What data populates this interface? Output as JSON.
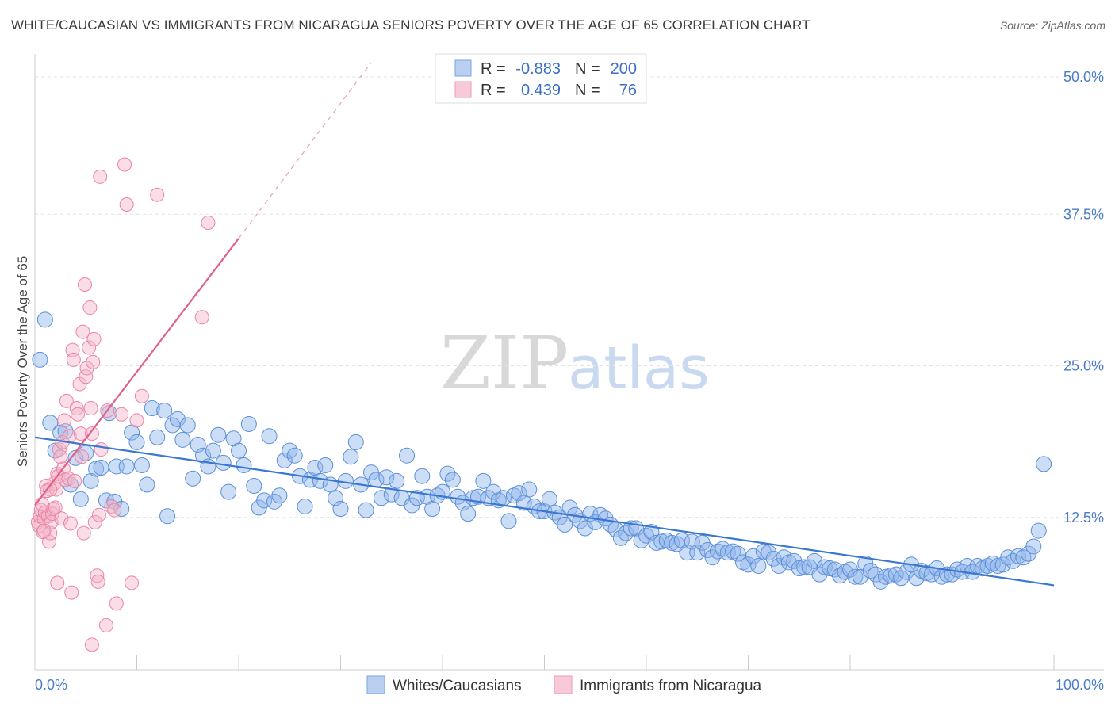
{
  "title": "WHITE/CAUCASIAN VS IMMIGRANTS FROM NICARAGUA SENIORS POVERTY OVER THE AGE OF 65 CORRELATION CHART",
  "source": "Source: ZipAtlas.com",
  "watermark": {
    "zip": "ZIP",
    "atlas": "atlas"
  },
  "chart_data": {
    "type": "scatter",
    "title": "WHITE/CAUCASIAN VS IMMIGRANTS FROM NICARAGUA SENIORS POVERTY OVER THE AGE OF 65 CORRELATION CHART",
    "xlabel": "",
    "ylabel": "Seniors Poverty Over the Age of 65",
    "xlim": [
      0,
      100
    ],
    "ylim": [
      0,
      50
    ],
    "x_tick_labels": {
      "min": "0.0%",
      "max": "100.0%"
    },
    "y_ticks": [
      12.5,
      25.0,
      37.5,
      50.0
    ],
    "y_tick_labels": [
      "12.5%",
      "25.0%",
      "37.5%",
      "50.0%"
    ],
    "legend": {
      "rows": [
        {
          "r_label": "R =",
          "r_value": "-0.883",
          "n_label": "N =",
          "n_value": "200"
        },
        {
          "r_label": "R =",
          "r_value": "0.439",
          "n_label": "N =",
          "n_value": "76"
        }
      ]
    },
    "series": [
      {
        "name": "Whites/Caucasians",
        "color": "#8fb4ea",
        "stroke": "#5b8fd8",
        "trend": {
          "x0": 0,
          "y0": 19.1,
          "x1": 100,
          "y1": 6.9,
          "color": "#3a78d0"
        },
        "points": [
          [
            0.5,
            25.5
          ],
          [
            1,
            28.8
          ],
          [
            1.5,
            20.3
          ],
          [
            2,
            18
          ],
          [
            2.5,
            19.5
          ],
          [
            3,
            19.6
          ],
          [
            3.5,
            15.2
          ],
          [
            4,
            17.4
          ],
          [
            4.5,
            14
          ],
          [
            5,
            17.8
          ],
          [
            5.5,
            15.5
          ],
          [
            6,
            16.5
          ],
          [
            6.5,
            16.6
          ],
          [
            7,
            13.9
          ],
          [
            7.3,
            21.1
          ],
          [
            7.8,
            13.8
          ],
          [
            8,
            16.7
          ],
          [
            8.5,
            13.2
          ],
          [
            9,
            16.7
          ],
          [
            9.5,
            19.5
          ],
          [
            10,
            18.7
          ],
          [
            10.5,
            16.8
          ],
          [
            11,
            15.2
          ],
          [
            11.5,
            21.5
          ],
          [
            12,
            19.1
          ],
          [
            12.7,
            21.3
          ],
          [
            13,
            12.6
          ],
          [
            13.5,
            20.1
          ],
          [
            14,
            20.6
          ],
          [
            14.5,
            18.9
          ],
          [
            15,
            20.1
          ],
          [
            15.5,
            15.7
          ],
          [
            16,
            18.5
          ],
          [
            16.5,
            17.6
          ],
          [
            17,
            16.7
          ],
          [
            17.5,
            18.0
          ],
          [
            18,
            19.3
          ],
          [
            18.5,
            17
          ],
          [
            19,
            14.6
          ],
          [
            19.5,
            19
          ],
          [
            20,
            18
          ],
          [
            20.5,
            16.8
          ],
          [
            21,
            20.2
          ],
          [
            21.5,
            15.1
          ],
          [
            22,
            13.3
          ],
          [
            22.5,
            13.9
          ],
          [
            23,
            19.2
          ],
          [
            23.5,
            13.8
          ],
          [
            24,
            14.3
          ],
          [
            24.5,
            17.2
          ],
          [
            25,
            18
          ],
          [
            25.5,
            17.6
          ],
          [
            26,
            15.9
          ],
          [
            26.5,
            13.4
          ],
          [
            27,
            15.6
          ],
          [
            27.5,
            16.6
          ],
          [
            28,
            15.5
          ],
          [
            28.5,
            16.8
          ],
          [
            29,
            15.2
          ],
          [
            29.5,
            14.1
          ],
          [
            30,
            13.2
          ],
          [
            30.5,
            15.5
          ],
          [
            31,
            17.5
          ],
          [
            31.5,
            18.7
          ],
          [
            32,
            15.2
          ],
          [
            32.5,
            13.1
          ],
          [
            33,
            16.2
          ],
          [
            33.5,
            15.6
          ],
          [
            34,
            14.1
          ],
          [
            34.5,
            15.8
          ],
          [
            35,
            14.4
          ],
          [
            35.5,
            15.5
          ],
          [
            36,
            14.1
          ],
          [
            36.5,
            17.6
          ],
          [
            37,
            13.5
          ],
          [
            37.5,
            14.1
          ],
          [
            38,
            15.9
          ],
          [
            38.5,
            14.2
          ],
          [
            39,
            13.2
          ],
          [
            39.5,
            14.3
          ],
          [
            40,
            14.6
          ],
          [
            40.5,
            16.1
          ],
          [
            41,
            15.6
          ],
          [
            41.5,
            14.2
          ],
          [
            42,
            13.7
          ],
          [
            42.5,
            12.8
          ],
          [
            43,
            14.1
          ],
          [
            43.5,
            14.2
          ],
          [
            44,
            15.5
          ],
          [
            44.5,
            14.1
          ],
          [
            45,
            14.6
          ],
          [
            45.5,
            13.9
          ],
          [
            46,
            14.1
          ],
          [
            46.5,
            12.2
          ],
          [
            47,
            14.3
          ],
          [
            47.5,
            14.5
          ],
          [
            48,
            13.7
          ],
          [
            48.5,
            14.8
          ],
          [
            49,
            13.4
          ],
          [
            49.5,
            13
          ],
          [
            50,
            13
          ],
          [
            50.5,
            14
          ],
          [
            51,
            12.9
          ],
          [
            51.5,
            12.5
          ],
          [
            52,
            11.9
          ],
          [
            52.5,
            13.3
          ],
          [
            53,
            12.7
          ],
          [
            53.5,
            12.2
          ],
          [
            54,
            11.6
          ],
          [
            54.5,
            12.8
          ],
          [
            55,
            12.1
          ],
          [
            55.5,
            12.7
          ],
          [
            56,
            12.4
          ],
          [
            56.5,
            11.9
          ],
          [
            57,
            11.5
          ],
          [
            57.5,
            10.8
          ],
          [
            58,
            11.2
          ],
          [
            58.5,
            11.6
          ],
          [
            59,
            11.6
          ],
          [
            59.5,
            10.6
          ],
          [
            60,
            11
          ],
          [
            60.5,
            11.3
          ],
          [
            61,
            10.4
          ],
          [
            61.5,
            10.5
          ],
          [
            62,
            10.6
          ],
          [
            62.5,
            10.4
          ],
          [
            63,
            10.3
          ],
          [
            63.5,
            10.6
          ],
          [
            64,
            9.6
          ],
          [
            64.5,
            10.5
          ],
          [
            65,
            9.6
          ],
          [
            65.5,
            10.4
          ],
          [
            66,
            9.8
          ],
          [
            66.5,
            9.2
          ],
          [
            67,
            9.7
          ],
          [
            67.5,
            9.9
          ],
          [
            68,
            9.6
          ],
          [
            68.5,
            9.7
          ],
          [
            69,
            9.5
          ],
          [
            69.5,
            8.8
          ],
          [
            70,
            8.6
          ],
          [
            70.5,
            9.3
          ],
          [
            71,
            8.5
          ],
          [
            71.5,
            9.7
          ],
          [
            72,
            9.6
          ],
          [
            72.5,
            9.1
          ],
          [
            73,
            8.5
          ],
          [
            73.5,
            9.2
          ],
          [
            74,
            8.8
          ],
          [
            74.5,
            8.9
          ],
          [
            75,
            8.3
          ],
          [
            75.5,
            8.4
          ],
          [
            76,
            8.4
          ],
          [
            76.5,
            8.9
          ],
          [
            77,
            7.8
          ],
          [
            77.5,
            8.4
          ],
          [
            78,
            8.3
          ],
          [
            78.5,
            8.2
          ],
          [
            79,
            7.7
          ],
          [
            79.5,
            8.0
          ],
          [
            80,
            8.2
          ],
          [
            80.5,
            7.6
          ],
          [
            81,
            7.6
          ],
          [
            81.5,
            8.7
          ],
          [
            82,
            8.1
          ],
          [
            82.5,
            7.8
          ],
          [
            83,
            7.2
          ],
          [
            83.5,
            7.6
          ],
          [
            84,
            7.7
          ],
          [
            84.5,
            7.8
          ],
          [
            85,
            7.5
          ],
          [
            85.5,
            8
          ],
          [
            86,
            8.6
          ],
          [
            86.5,
            7.5
          ],
          [
            87,
            8.1
          ],
          [
            87.5,
            7.9
          ],
          [
            88,
            7.8
          ],
          [
            88.5,
            8.3
          ],
          [
            89,
            7.6
          ],
          [
            89.5,
            7.8
          ],
          [
            90,
            7.8
          ],
          [
            90.5,
            8.2
          ],
          [
            91,
            8
          ],
          [
            91.5,
            8.5
          ],
          [
            92,
            8
          ],
          [
            92.5,
            8.5
          ],
          [
            93,
            8.3
          ],
          [
            93.5,
            8.5
          ],
          [
            94,
            8.7
          ],
          [
            94.5,
            8.5
          ],
          [
            95,
            8.6
          ],
          [
            95.5,
            9.2
          ],
          [
            96,
            8.9
          ],
          [
            96.5,
            9.3
          ],
          [
            97,
            9.2
          ],
          [
            97.5,
            9.5
          ],
          [
            98,
            10.1
          ],
          [
            98.5,
            11.4
          ],
          [
            99,
            16.9
          ]
        ]
      },
      {
        "name": "Immigrants from Nicaragua",
        "color": "#f5b3c8",
        "stroke": "#e985a6",
        "trend": {
          "x0": 0,
          "y0": 13.5,
          "x1": 20,
          "y1": 35.5,
          "color": "#e0608c",
          "dash_x1": 33,
          "dash_y1": 50
        },
        "points": [
          [
            0.3,
            12.1
          ],
          [
            0.4,
            11.8
          ],
          [
            0.5,
            12.6
          ],
          [
            0.6,
            13.1
          ],
          [
            0.7,
            13.6
          ],
          [
            0.8,
            11.3
          ],
          [
            0.9,
            12.4
          ],
          [
            1,
            12.9
          ],
          [
            1.1,
            15.1
          ],
          [
            1.2,
            14.7
          ],
          [
            1.3,
            12.6
          ],
          [
            1.4,
            10.5
          ],
          [
            1.5,
            11.2
          ],
          [
            1.6,
            12.1
          ],
          [
            1.7,
            12.8
          ],
          [
            1.8,
            13.2
          ],
          [
            1.9,
            15.3
          ],
          [
            2,
            13.3
          ],
          [
            2.1,
            14.8
          ],
          [
            2.2,
            16.1
          ],
          [
            2.3,
            15.9
          ],
          [
            2.4,
            18.1
          ],
          [
            2.5,
            17.5
          ],
          [
            2.6,
            12.4
          ],
          [
            2.7,
            18.7
          ],
          [
            2.8,
            16.5
          ],
          [
            2.9,
            20.5
          ],
          [
            3,
            15.6
          ],
          [
            3.1,
            22.1
          ],
          [
            3.3,
            15.7
          ],
          [
            3.4,
            19.2
          ],
          [
            3.5,
            12.0
          ],
          [
            3.6,
            6.3
          ],
          [
            3.7,
            26.3
          ],
          [
            3.8,
            25.5
          ],
          [
            3.9,
            15.5
          ],
          [
            4.1,
            21.5
          ],
          [
            4.2,
            21
          ],
          [
            4.4,
            23.5
          ],
          [
            4.5,
            19.4
          ],
          [
            4.6,
            17.5
          ],
          [
            4.7,
            27.8
          ],
          [
            4.8,
            11.2
          ],
          [
            4.9,
            31.7
          ],
          [
            5,
            24.1
          ],
          [
            5.1,
            24.8
          ],
          [
            5.3,
            26.5
          ],
          [
            5.4,
            29.8
          ],
          [
            5.5,
            21.5
          ],
          [
            5.6,
            19.4
          ],
          [
            5.7,
            25.3
          ],
          [
            5.8,
            27.2
          ],
          [
            5.9,
            12.1
          ],
          [
            6.1,
            7.7
          ],
          [
            6.2,
            7.2
          ],
          [
            6.3,
            12.7
          ],
          [
            6.4,
            40.6
          ],
          [
            6.5,
            18.1
          ],
          [
            7,
            3.6
          ],
          [
            7.5,
            13.4
          ],
          [
            7.8,
            13.1
          ],
          [
            8,
            5.4
          ],
          [
            8.5,
            21.0
          ],
          [
            8.8,
            41.6
          ],
          [
            9,
            38.3
          ],
          [
            9.5,
            7.1
          ],
          [
            10,
            20.5
          ],
          [
            10.5,
            22.5
          ],
          [
            12,
            39.1
          ],
          [
            2.2,
            7.1
          ],
          [
            5.6,
            2.0
          ],
          [
            7.1,
            21.3
          ],
          [
            16.4,
            29
          ],
          [
            17,
            36.8
          ],
          [
            1.5,
            14.8
          ],
          [
            0.9,
            11.4
          ]
        ]
      }
    ]
  },
  "bottom_legend": [
    {
      "label": "Whites/Caucasians"
    },
    {
      "label": "Immigrants from Nicaragua"
    }
  ]
}
